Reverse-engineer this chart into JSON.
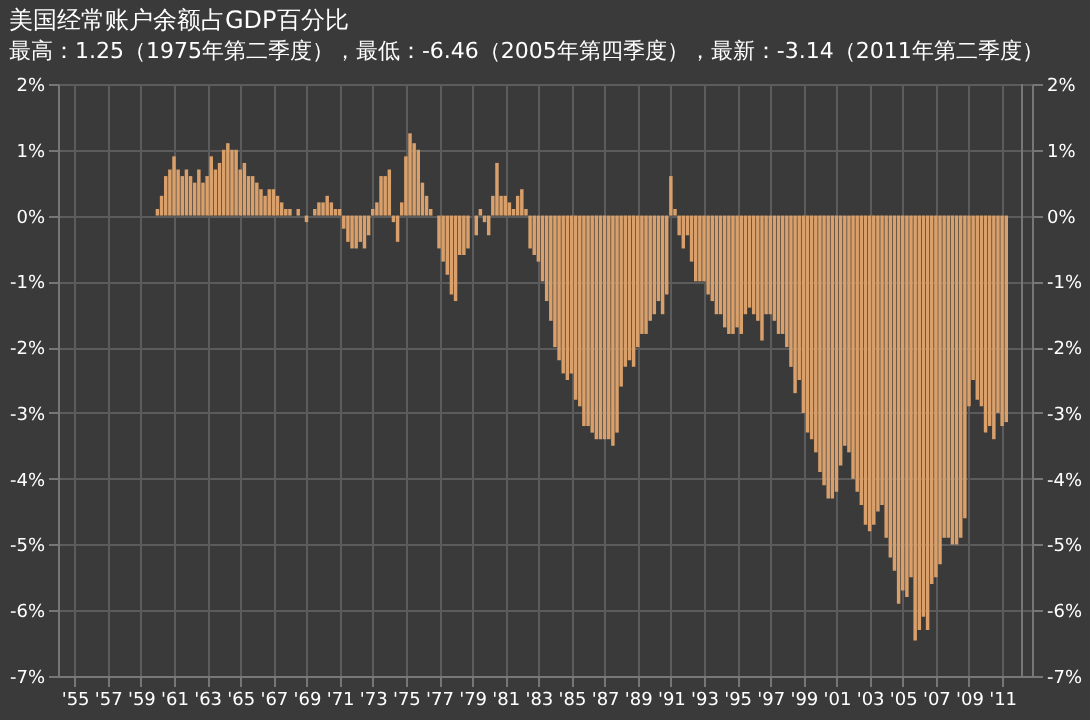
{
  "chart_data": {
    "type": "bar",
    "title": "美国经常账户余额占GDP百分比",
    "subtitle": "最高：1.25（1975年第二季度），最低：-6.46（2005年第四季度），最新：-3.14（2011年第二季度）",
    "x": [
      1960,
      1960.25,
      1960.5,
      1960.75,
      1961,
      1961.25,
      1961.5,
      1961.75,
      1962,
      1962.25,
      1962.5,
      1962.75,
      1963,
      1963.25,
      1963.5,
      1963.75,
      1964,
      1964.25,
      1964.5,
      1964.75,
      1965,
      1965.25,
      1965.5,
      1965.75,
      1966,
      1966.25,
      1966.5,
      1966.75,
      1967,
      1967.25,
      1967.5,
      1967.75,
      1968,
      1968.25,
      1968.5,
      1968.75,
      1969,
      1969.25,
      1969.5,
      1969.75,
      1970,
      1970.25,
      1970.5,
      1970.75,
      1971,
      1971.25,
      1971.5,
      1971.75,
      1972,
      1972.25,
      1972.5,
      1972.75,
      1973,
      1973.25,
      1973.5,
      1973.75,
      1974,
      1974.25,
      1974.5,
      1974.75,
      1975,
      1975.25,
      1975.5,
      1975.75,
      1976,
      1976.25,
      1976.5,
      1976.75,
      1977,
      1977.25,
      1977.5,
      1977.75,
      1978,
      1978.25,
      1978.5,
      1978.75,
      1979,
      1979.25,
      1979.5,
      1979.75,
      1980,
      1980.25,
      1980.5,
      1980.75,
      1981,
      1981.25,
      1981.5,
      1981.75,
      1982,
      1982.25,
      1982.5,
      1982.75,
      1983,
      1983.25,
      1983.5,
      1983.75,
      1984,
      1984.25,
      1984.5,
      1984.75,
      1985,
      1985.25,
      1985.5,
      1985.75,
      1986,
      1986.25,
      1986.5,
      1986.75,
      1987,
      1987.25,
      1987.5,
      1987.75,
      1988,
      1988.25,
      1988.5,
      1988.75,
      1989,
      1989.25,
      1989.5,
      1989.75,
      1990,
      1990.25,
      1990.5,
      1990.75,
      1991,
      1991.25,
      1991.5,
      1991.75,
      1992,
      1992.25,
      1992.5,
      1992.75,
      1993,
      1993.25,
      1993.5,
      1993.75,
      1994,
      1994.25,
      1994.5,
      1994.75,
      1995,
      1995.25,
      1995.5,
      1995.75,
      1996,
      1996.25,
      1996.5,
      1996.75,
      1997,
      1997.25,
      1997.5,
      1997.75,
      1998,
      1998.25,
      1998.5,
      1998.75,
      1999,
      1999.25,
      1999.5,
      1999.75,
      2000,
      2000.25,
      2000.5,
      2000.75,
      2001,
      2001.25,
      2001.5,
      2001.75,
      2002,
      2002.25,
      2002.5,
      2002.75,
      2003,
      2003.25,
      2003.5,
      2003.75,
      2004,
      2004.25,
      2004.5,
      2004.75,
      2005,
      2005.25,
      2005.5,
      2005.75,
      2006,
      2006.25,
      2006.5,
      2006.75,
      2007,
      2007.25,
      2007.5,
      2007.75,
      2008,
      2008.25,
      2008.5,
      2008.75,
      2009,
      2009.25,
      2009.5,
      2009.75,
      2010,
      2010.25,
      2010.5,
      2010.75,
      2011,
      2011.25
    ],
    "values": [
      0.1,
      0.3,
      0.6,
      0.7,
      0.9,
      0.7,
      0.6,
      0.7,
      0.6,
      0.5,
      0.7,
      0.5,
      0.6,
      0.9,
      0.7,
      0.8,
      1.0,
      1.1,
      1.0,
      1.0,
      0.7,
      0.8,
      0.6,
      0.6,
      0.5,
      0.4,
      0.3,
      0.4,
      0.4,
      0.3,
      0.2,
      0.1,
      0.1,
      0.0,
      0.1,
      0.0,
      -0.1,
      0.0,
      0.1,
      0.2,
      0.2,
      0.3,
      0.2,
      0.1,
      0.1,
      -0.2,
      -0.4,
      -0.5,
      -0.5,
      -0.4,
      -0.5,
      -0.3,
      0.1,
      0.2,
      0.6,
      0.6,
      0.7,
      -0.1,
      -0.4,
      0.2,
      0.9,
      1.25,
      1.1,
      1.0,
      0.5,
      0.3,
      0.1,
      0.0,
      -0.5,
      -0.7,
      -0.9,
      -1.2,
      -1.3,
      -0.6,
      -0.6,
      -0.5,
      0.0,
      -0.3,
      0.1,
      -0.1,
      -0.3,
      0.3,
      0.8,
      0.3,
      0.3,
      0.2,
      0.1,
      0.3,
      0.4,
      0.1,
      -0.5,
      -0.6,
      -0.7,
      -1.0,
      -1.3,
      -1.6,
      -2.0,
      -2.2,
      -2.4,
      -2.5,
      -2.4,
      -2.8,
      -2.9,
      -3.2,
      -3.2,
      -3.3,
      -3.4,
      -3.4,
      -3.4,
      -3.4,
      -3.5,
      -3.3,
      -2.6,
      -2.3,
      -2.2,
      -2.3,
      -2.0,
      -1.8,
      -1.8,
      -1.6,
      -1.5,
      -1.3,
      -1.5,
      -1.2,
      0.6,
      0.1,
      -0.3,
      -0.5,
      -0.3,
      -0.7,
      -1.0,
      -1.0,
      -1.0,
      -1.2,
      -1.3,
      -1.5,
      -1.5,
      -1.7,
      -1.8,
      -1.8,
      -1.7,
      -1.8,
      -1.5,
      -1.4,
      -1.5,
      -1.6,
      -1.9,
      -1.5,
      -1.5,
      -1.6,
      -1.8,
      -1.8,
      -2.0,
      -2.3,
      -2.7,
      -2.5,
      -3.0,
      -3.3,
      -3.4,
      -3.6,
      -3.9,
      -4.1,
      -4.3,
      -4.3,
      -4.2,
      -3.8,
      -3.5,
      -3.6,
      -4.0,
      -4.2,
      -4.4,
      -4.7,
      -4.8,
      -4.7,
      -4.5,
      -4.4,
      -4.9,
      -5.2,
      -5.4,
      -5.9,
      -5.7,
      -5.8,
      -5.5,
      -6.46,
      -6.3,
      -6.1,
      -6.3,
      -5.6,
      -5.5,
      -5.3,
      -4.9,
      -4.9,
      -5.0,
      -5.0,
      -4.9,
      -4.6,
      -2.9,
      -2.5,
      -2.8,
      -2.9,
      -3.3,
      -3.2,
      -3.4,
      -3.0,
      -3.2,
      -3.14
    ],
    "color": "#d9a06b",
    "xlim": [
      1954.6,
      2012.2
    ],
    "xticks": [
      {
        "value": 1955,
        "label": "'55"
      },
      {
        "value": 1957,
        "label": "'57"
      },
      {
        "value": 1959,
        "label": "'59"
      },
      {
        "value": 1961,
        "label": "'61"
      },
      {
        "value": 1963,
        "label": "'63"
      },
      {
        "value": 1965,
        "label": "'65"
      },
      {
        "value": 1967,
        "label": "'67"
      },
      {
        "value": 1969,
        "label": "'69"
      },
      {
        "value": 1971,
        "label": "'71"
      },
      {
        "value": 1973,
        "label": "'73"
      },
      {
        "value": 1975,
        "label": "'75"
      },
      {
        "value": 1977,
        "label": "'77"
      },
      {
        "value": 1979,
        "label": "'79"
      },
      {
        "value": 1981,
        "label": "'81"
      },
      {
        "value": 1983,
        "label": "'83"
      },
      {
        "value": 1985,
        "label": "'85"
      },
      {
        "value": 1987,
        "label": "'87"
      },
      {
        "value": 1989,
        "label": "'89"
      },
      {
        "value": 1991,
        "label": "'91"
      },
      {
        "value": 1993,
        "label": "'93"
      },
      {
        "value": 1995,
        "label": "'95"
      },
      {
        "value": 1997,
        "label": "'97"
      },
      {
        "value": 1999,
        "label": "'99"
      },
      {
        "value": 2001,
        "label": "'01"
      },
      {
        "value": 2003,
        "label": "'03"
      },
      {
        "value": 2005,
        "label": "'05"
      },
      {
        "value": 2007,
        "label": "'07"
      },
      {
        "value": 2009,
        "label": "'09"
      },
      {
        "value": 2011,
        "label": "'11"
      }
    ],
    "ylim": [
      -7,
      2
    ],
    "yticks": [
      {
        "value": -7,
        "label": "-7%"
      },
      {
        "value": -6,
        "label": "-6%"
      },
      {
        "value": -5,
        "label": "-5%"
      },
      {
        "value": -4,
        "label": "-4%"
      },
      {
        "value": -3,
        "label": "-3%"
      },
      {
        "value": -2,
        "label": "-2%"
      },
      {
        "value": -1,
        "label": "-1%"
      },
      {
        "value": 0,
        "label": "0%"
      },
      {
        "value": 1,
        "label": "1%"
      },
      {
        "value": 2,
        "label": "2%"
      }
    ],
    "y2lim": [
      -7,
      2
    ],
    "y2ticks": [
      {
        "value": -7,
        "label": "-7%"
      },
      {
        "value": -6,
        "label": "-6%"
      },
      {
        "value": -5,
        "label": "-5%"
      },
      {
        "value": -4,
        "label": "-4%"
      },
      {
        "value": -3,
        "label": "-3%"
      },
      {
        "value": -2,
        "label": "-2%"
      },
      {
        "value": -1,
        "label": "-1%"
      },
      {
        "value": 0,
        "label": "0%"
      },
      {
        "value": 1,
        "label": "1%"
      },
      {
        "value": 2,
        "label": "2%"
      }
    ],
    "grid": true
  }
}
